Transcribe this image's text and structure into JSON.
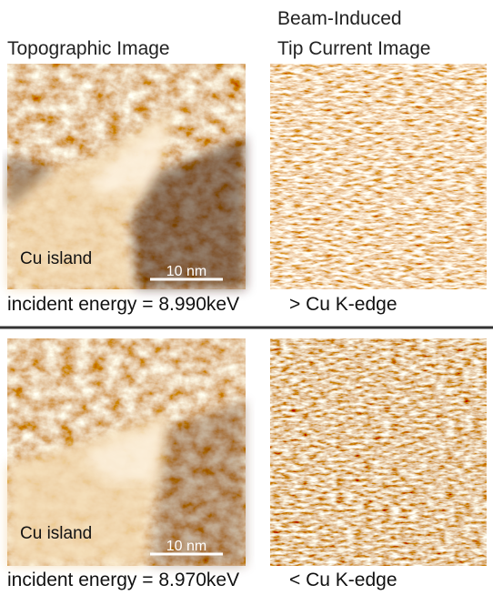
{
  "header": {
    "left_title": "Topographic Image",
    "right_title_line1": "Beam-Induced",
    "right_title_line2": "Tip Current Image"
  },
  "panels": [
    {
      "island_label": "Cu island",
      "scale_bar": "10 nm",
      "energy": "incident energy = 8.990keV",
      "edge": "> Cu K-edge"
    },
    {
      "island_label": "Cu island",
      "scale_bar": "10 nm",
      "energy": "incident energy = 8.970keV",
      "edge": "< Cu K-edge"
    }
  ]
}
